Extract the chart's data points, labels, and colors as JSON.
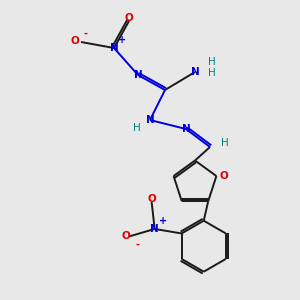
{
  "background_color": "#e8e8e8",
  "bond_color": "#1a1a1a",
  "blue_color": "#0000dd",
  "red_color": "#dd0000",
  "teal_color": "#008080",
  "figsize": [
    3.0,
    3.0
  ],
  "dpi": 100,
  "xlim": [
    0,
    10
  ],
  "ylim": [
    0,
    10
  ],
  "bond_lw": 1.4,
  "font_size": 7.5
}
